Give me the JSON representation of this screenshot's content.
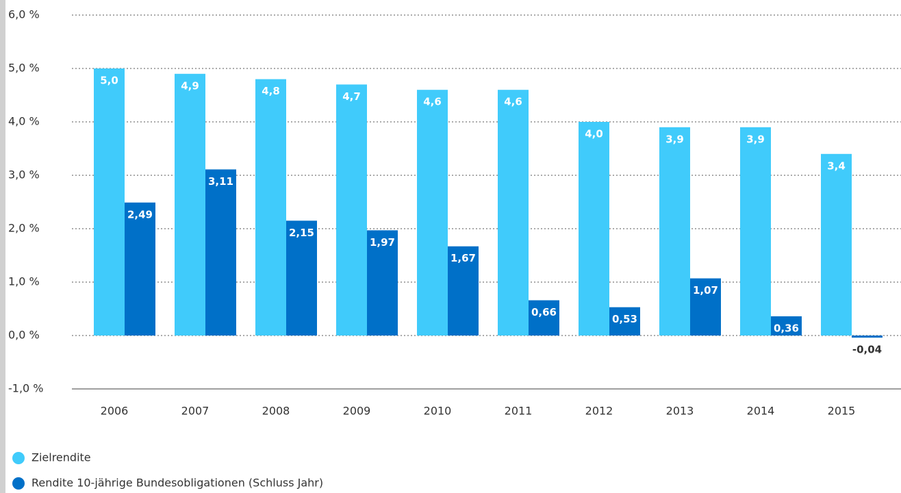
{
  "chart_data": {
    "type": "bar",
    "categories": [
      "2006",
      "2007",
      "2008",
      "2009",
      "2010",
      "2011",
      "2012",
      "2013",
      "2014",
      "2015"
    ],
    "series": [
      {
        "name": "Zielrendite",
        "color": "#40cbfb",
        "values": [
          5.0,
          4.9,
          4.8,
          4.7,
          4.6,
          4.6,
          4.0,
          3.9,
          3.9,
          3.4
        ],
        "value_labels": [
          "5,0",
          "4,9",
          "4,8",
          "4,7",
          "4,6",
          "4,6",
          "4,0",
          "3,9",
          "3,9",
          "3,4"
        ]
      },
      {
        "name": "Rendite 10-jährige Bundesobligationen (Schluss Jahr)",
        "color": "#0070c8",
        "values": [
          2.49,
          3.11,
          2.15,
          1.97,
          1.67,
          0.66,
          0.53,
          1.07,
          0.36,
          -0.04
        ],
        "value_labels": [
          "2,49",
          "3,11",
          "2,15",
          "1,97",
          "1,67",
          "0,66",
          "0,53",
          "1,07",
          "0,36",
          "-0,04"
        ]
      }
    ],
    "ylim": [
      -1,
      6
    ],
    "yticks": [
      {
        "value": -1,
        "label": "-1,0 %"
      },
      {
        "value": 0,
        "label": "0,0 %"
      },
      {
        "value": 1,
        "label": "1,0 %"
      },
      {
        "value": 2,
        "label": "2,0 %"
      },
      {
        "value": 3,
        "label": "3,0 %"
      },
      {
        "value": 4,
        "label": "4,0 %"
      },
      {
        "value": 5,
        "label": "5,0 %"
      },
      {
        "value": 6,
        "label": "6,0 %"
      }
    ],
    "grid": true
  }
}
